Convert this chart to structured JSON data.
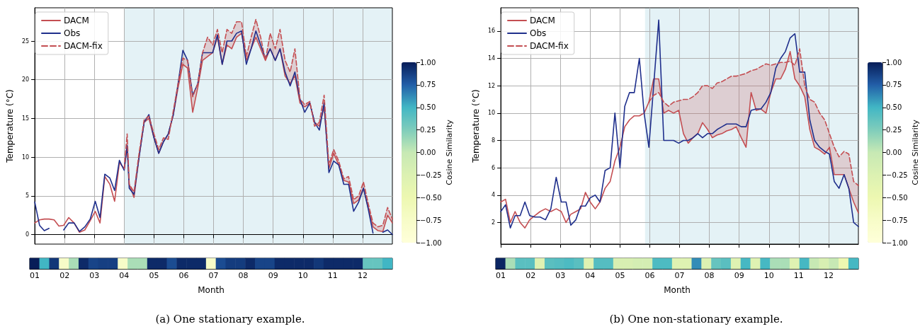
{
  "chart_data": [
    {
      "type": "line",
      "ylabel": "Temperature (°C)",
      "xlim": [
        1,
        13
      ],
      "ylim": [
        -1.23,
        29.3
      ],
      "xticks": [
        {
          "value": 1,
          "label": "01"
        },
        {
          "value": 2,
          "label": "02"
        },
        {
          "value": 3,
          "label": "03"
        },
        {
          "value": 4,
          "label": "04"
        },
        {
          "value": 5,
          "label": "05"
        },
        {
          "value": 6,
          "label": "06"
        },
        {
          "value": 7,
          "label": "07"
        },
        {
          "value": 8,
          "label": "08"
        },
        {
          "value": 9,
          "label": "09"
        },
        {
          "value": 10,
          "label": "10"
        },
        {
          "value": 11,
          "label": "11"
        },
        {
          "value": 12,
          "label": "12"
        }
      ],
      "yticks": [
        0,
        5,
        10,
        15,
        20,
        25
      ],
      "grid": true,
      "legend": "top left",
      "bands": [
        {
          "axis": "x",
          "from": 4,
          "to": 13,
          "color": "#e4f2f6"
        }
      ],
      "x": [
        1.0,
        1.16,
        1.32,
        1.48,
        1.65,
        1.81,
        1.97,
        2.14,
        2.32,
        2.5,
        2.68,
        2.86,
        3.03,
        3.19,
        3.35,
        3.52,
        3.68,
        3.84,
        4.0,
        4.1,
        4.17,
        4.33,
        4.5,
        4.67,
        4.83,
        5.0,
        5.16,
        5.32,
        5.48,
        5.65,
        5.81,
        5.97,
        6.13,
        6.3,
        6.47,
        6.63,
        6.8,
        6.97,
        7.13,
        7.29,
        7.45,
        7.61,
        7.77,
        7.94,
        8.1,
        8.26,
        8.42,
        8.58,
        8.74,
        8.9,
        9.07,
        9.23,
        9.4,
        9.57,
        9.73,
        9.9,
        10.06,
        10.23,
        10.39,
        10.55,
        10.71,
        10.87,
        11.03,
        11.2,
        11.37,
        11.53,
        11.7,
        11.87,
        12.03,
        12.19,
        12.35,
        12.52,
        12.68,
        12.84,
        13.0
      ],
      "series": [
        {
          "name": "DACM",
          "color": "#c44e52",
          "line_style": "solid",
          "values": [
            1.5,
            1.9,
            2.0,
            2.0,
            1.9,
            1.1,
            1.2,
            2.2,
            1.5,
            0.3,
            0.6,
            1.8,
            3.0,
            1.5,
            7.5,
            6.5,
            4.3,
            9.3,
            8.5,
            11.5,
            6.5,
            4.8,
            10.0,
            14.5,
            15.0,
            12.5,
            10.5,
            12.0,
            13.0,
            15.5,
            19.0,
            22.0,
            21.5,
            15.8,
            19.0,
            22.5,
            23.0,
            23.5,
            25.5,
            22.0,
            24.5,
            24.0,
            25.5,
            26.0,
            22.5,
            24.0,
            25.5,
            24.0,
            22.5,
            24.0,
            22.5,
            24.0,
            20.5,
            19.5,
            20.5,
            17.0,
            16.5,
            17.0,
            14.5,
            14.0,
            16.5,
            8.5,
            10.5,
            9.0,
            7.0,
            6.8,
            4.0,
            4.5,
            6.0,
            3.5,
            1.0,
            0.5,
            0.4,
            2.5,
            1.5
          ]
        },
        {
          "name": "Obs",
          "color": "#1f2f8c",
          "line_style": "solid",
          "values": [
            4.2,
            1.2,
            0.5,
            0.8,
            null,
            null,
            0.6,
            1.5,
            1.5,
            0.4,
            1.0,
            2.0,
            4.3,
            2.2,
            7.8,
            7.3,
            5.7,
            9.6,
            8.3,
            11.5,
            6.0,
            5.2,
            10.0,
            14.5,
            15.5,
            12.5,
            10.5,
            12.0,
            13.0,
            15.5,
            19.5,
            23.8,
            22.5,
            18.0,
            19.5,
            23.5,
            23.5,
            23.5,
            25.8,
            22.0,
            25.0,
            25.0,
            26.0,
            26.3,
            22.0,
            24.0,
            26.3,
            24.5,
            22.8,
            24.0,
            22.5,
            24.0,
            21.0,
            19.2,
            21.0,
            17.5,
            15.8,
            17.0,
            14.5,
            13.5,
            17.0,
            8.0,
            9.5,
            9.0,
            6.5,
            6.5,
            3.0,
            4.2,
            6.0,
            3.3,
            0.2,
            null,
            0.3,
            0.6,
            0.0
          ]
        },
        {
          "name": "DACM-fix",
          "color": "#c44e52",
          "line_style": "dashed",
          "values": [
            null,
            null,
            null,
            null,
            null,
            null,
            null,
            null,
            null,
            null,
            null,
            null,
            null,
            null,
            null,
            null,
            null,
            null,
            8.5,
            13.0,
            6.5,
            5.5,
            10.5,
            14.8,
            15.3,
            13.0,
            11.0,
            12.5,
            12.3,
            16.0,
            19.5,
            22.8,
            22.5,
            17.8,
            19.5,
            23.5,
            25.5,
            24.5,
            26.5,
            23.5,
            26.5,
            26.0,
            27.5,
            27.5,
            23.0,
            25.5,
            27.8,
            25.5,
            22.5,
            26.0,
            24.0,
            26.5,
            22.5,
            21.0,
            24.0,
            17.5,
            16.8,
            17.2,
            14.0,
            14.5,
            18.0,
            9.0,
            11.0,
            9.5,
            7.2,
            7.5,
            4.5,
            5.0,
            6.8,
            4.0,
            1.5,
            1.0,
            1.2,
            3.5,
            2.0
          ],
          "upper": [
            null,
            null,
            null,
            null,
            null,
            null,
            null,
            null,
            null,
            null,
            null,
            null,
            null,
            null,
            null,
            null,
            null,
            null,
            8.5,
            13.0,
            6.5,
            5.5,
            10.5,
            14.8,
            15.3,
            13.0,
            11.0,
            12.5,
            12.3,
            16.0,
            19.5,
            22.8,
            22.5,
            17.8,
            19.5,
            23.5,
            25.5,
            24.5,
            26.5,
            23.5,
            26.5,
            26.0,
            27.5,
            27.5,
            23.0,
            25.5,
            27.8,
            25.5,
            22.5,
            26.0,
            24.0,
            26.5,
            22.5,
            21.0,
            24.0,
            17.5,
            16.8,
            17.2,
            14.0,
            14.5,
            18.0,
            9.0,
            11.0,
            9.5,
            7.2,
            7.5,
            4.5,
            5.0,
            6.8,
            4.0,
            1.5,
            1.0,
            1.2,
            3.5,
            2.0
          ],
          "lower": [
            null,
            null,
            null,
            null,
            null,
            null,
            null,
            null,
            null,
            null,
            null,
            null,
            null,
            null,
            null,
            null,
            null,
            null,
            8.5,
            11.5,
            6.5,
            4.8,
            10.0,
            14.5,
            15.0,
            12.5,
            10.5,
            12.0,
            13.0,
            15.5,
            19.0,
            22.0,
            21.5,
            15.8,
            19.0,
            22.5,
            23.0,
            23.5,
            25.5,
            22.0,
            24.5,
            24.0,
            25.5,
            26.0,
            22.5,
            24.0,
            25.5,
            24.0,
            22.5,
            24.0,
            22.5,
            24.0,
            20.5,
            19.5,
            20.5,
            17.0,
            16.5,
            17.0,
            14.5,
            14.0,
            16.5,
            8.5,
            10.5,
            9.0,
            7.0,
            6.8,
            4.0,
            4.5,
            6.0,
            3.5,
            1.0,
            0.5,
            0.4,
            2.5,
            1.5
          ]
        }
      ]
    },
    {
      "type": "heatmap",
      "xlabel": "Month",
      "clabel": "Cosine Similarity",
      "clim": [
        -1,
        1
      ],
      "cticks": [
        {
          "value": 1,
          "label": "1.00"
        },
        {
          "value": 0.75,
          "label": "0.75"
        },
        {
          "value": 0.5,
          "label": "0.50"
        },
        {
          "value": 0.25,
          "label": "0.25"
        },
        {
          "value": 0,
          "label": "0.00"
        },
        {
          "value": -0.25,
          "label": "−0.25"
        },
        {
          "value": -0.5,
          "label": "−0.50"
        },
        {
          "value": -0.75,
          "label": "−0.75"
        },
        {
          "value": -1,
          "label": "−1.00"
        }
      ],
      "categories": [
        null,
        null,
        null,
        null,
        null,
        null,
        null,
        null,
        null,
        null,
        null,
        null,
        null,
        null,
        null,
        null,
        null,
        null,
        null,
        null,
        null,
        null,
        null,
        null,
        null,
        null,
        null,
        null,
        null,
        null,
        null,
        null,
        null,
        null,
        null,
        null,
        null
      ],
      "y_categories": [
        null
      ],
      "cells": [
        [
          1.0,
          0.5,
          0.9,
          -0.75,
          0.1,
          0.95,
          0.85,
          0.87,
          0.87,
          -0.75,
          0.1,
          0.1,
          0.95,
          0.95,
          0.82,
          0.95,
          0.95,
          0.95,
          -0.75,
          0.82,
          0.88,
          0.88,
          0.95,
          0.85,
          0.85,
          0.95,
          0.95,
          0.95,
          0.95,
          0.9,
          0.95,
          0.95,
          0.95,
          0.95,
          0.35,
          0.35,
          0.5
        ]
      ],
      "annotations": [
        "(a) One stationary example."
      ]
    },
    {
      "type": "line",
      "ylabel": "Temperature (°C)",
      "xlim": [
        1,
        13
      ],
      "ylim": [
        0.42,
        17.7
      ],
      "xticks": [
        {
          "value": 1,
          "label": "01"
        },
        {
          "value": 2,
          "label": "02"
        },
        {
          "value": 3,
          "label": "03"
        },
        {
          "value": 4,
          "label": "04"
        },
        {
          "value": 5,
          "label": "05"
        },
        {
          "value": 6,
          "label": "06"
        },
        {
          "value": 7,
          "label": "07"
        },
        {
          "value": 8,
          "label": "08"
        },
        {
          "value": 9,
          "label": "09"
        },
        {
          "value": 10,
          "label": "10"
        },
        {
          "value": 11,
          "label": "11"
        },
        {
          "value": 12,
          "label": "12"
        }
      ],
      "yticks": [
        2,
        4,
        6,
        8,
        10,
        12,
        14,
        16
      ],
      "grid": true,
      "legend": "top left",
      "bands": [
        {
          "axis": "x",
          "from": 5.84,
          "to": 13,
          "color": "#e4f2f6"
        }
      ],
      "x": [
        1.0,
        1.16,
        1.32,
        1.48,
        1.65,
        1.81,
        1.97,
        2.14,
        2.32,
        2.5,
        2.68,
        2.86,
        3.03,
        3.19,
        3.35,
        3.52,
        3.68,
        3.84,
        4.0,
        4.17,
        4.33,
        4.5,
        4.67,
        4.83,
        5.0,
        5.16,
        5.32,
        5.48,
        5.65,
        5.81,
        5.97,
        6.13,
        6.3,
        6.47,
        6.63,
        6.8,
        6.97,
        7.13,
        7.29,
        7.45,
        7.61,
        7.77,
        7.94,
        8.1,
        8.26,
        8.42,
        8.58,
        8.74,
        8.9,
        9.07,
        9.23,
        9.4,
        9.57,
        9.73,
        9.9,
        10.06,
        10.23,
        10.39,
        10.55,
        10.71,
        10.87,
        11.03,
        11.2,
        11.37,
        11.53,
        11.7,
        11.87,
        12.03,
        12.19,
        12.35,
        12.52,
        12.68,
        12.84,
        13.0
      ],
      "series": [
        {
          "name": "DACM",
          "color": "#c44e52",
          "line_style": "solid",
          "values": [
            3.5,
            3.7,
            2.0,
            2.8,
            2.0,
            1.6,
            2.2,
            2.5,
            2.8,
            3.0,
            2.8,
            3.0,
            2.8,
            2.0,
            2.6,
            2.8,
            3.0,
            4.2,
            3.5,
            3.0,
            3.5,
            4.5,
            5.0,
            6.5,
            7.5,
            9.0,
            9.5,
            9.8,
            9.8,
            10.0,
            10.8,
            12.5,
            12.5,
            10.0,
            10.2,
            10.0,
            10.2,
            8.5,
            7.8,
            8.2,
            8.5,
            9.3,
            8.8,
            8.2,
            8.4,
            8.5,
            8.7,
            8.8,
            9.0,
            8.2,
            7.5,
            11.5,
            10.2,
            10.3,
            10.0,
            11.5,
            12.5,
            12.5,
            13.2,
            14.5,
            12.5,
            12.0,
            11.2,
            8.8,
            7.5,
            7.3,
            7.0,
            7.5,
            5.5,
            5.5,
            5.5,
            4.5,
            3.5,
            2.7
          ]
        },
        {
          "name": "Obs",
          "color": "#1f2f8c",
          "line_style": "solid",
          "values": [
            2.8,
            3.3,
            1.6,
            2.5,
            2.5,
            3.5,
            2.5,
            2.4,
            2.4,
            2.2,
            3.0,
            5.3,
            3.5,
            3.5,
            1.8,
            2.2,
            3.2,
            3.2,
            3.8,
            4.0,
            3.5,
            5.8,
            6.0,
            10.0,
            6.0,
            10.5,
            11.5,
            11.5,
            14.0,
            10.0,
            7.5,
            12.0,
            16.8,
            8.0,
            8.0,
            8.0,
            7.8,
            8.0,
            8.0,
            8.2,
            8.5,
            8.2,
            8.5,
            8.5,
            8.8,
            9.0,
            9.2,
            9.2,
            9.2,
            9.0,
            9.0,
            10.2,
            10.3,
            10.3,
            10.8,
            11.5,
            13.3,
            14.0,
            14.5,
            15.5,
            15.8,
            13.0,
            13.0,
            9.5,
            8.0,
            7.5,
            7.2,
            7.0,
            5.0,
            4.5,
            5.5,
            4.5,
            2.0,
            1.7
          ]
        },
        {
          "name": "DACM-fix",
          "color": "#c44e52",
          "line_style": "dashed",
          "values": [
            null,
            null,
            null,
            null,
            null,
            null,
            null,
            null,
            null,
            null,
            null,
            null,
            null,
            null,
            null,
            null,
            null,
            null,
            null,
            null,
            null,
            null,
            null,
            null,
            null,
            null,
            null,
            null,
            null,
            null,
            10.8,
            11.3,
            11.5,
            10.8,
            10.5,
            10.8,
            10.9,
            11.0,
            11.0,
            11.2,
            11.5,
            12.0,
            12.0,
            11.8,
            12.2,
            12.3,
            12.5,
            12.7,
            12.7,
            12.8,
            12.9,
            13.1,
            13.2,
            13.4,
            13.6,
            13.5,
            13.6,
            13.7,
            13.7,
            13.8,
            13.5,
            14.7,
            12.0,
            11.0,
            10.8,
            10.0,
            9.5,
            8.5,
            7.5,
            6.8,
            7.2,
            7.0,
            5.0,
            4.7
          ],
          "upper": [
            null,
            null,
            null,
            null,
            null,
            null,
            null,
            null,
            null,
            null,
            null,
            null,
            null,
            null,
            null,
            null,
            null,
            null,
            null,
            null,
            null,
            null,
            null,
            null,
            null,
            null,
            null,
            null,
            null,
            null,
            10.8,
            11.3,
            11.5,
            10.8,
            10.5,
            10.8,
            10.9,
            11.0,
            11.0,
            11.2,
            11.5,
            12.0,
            12.0,
            11.8,
            12.2,
            12.3,
            12.5,
            12.7,
            12.7,
            12.8,
            12.9,
            13.1,
            13.2,
            13.4,
            13.6,
            13.5,
            13.6,
            13.7,
            13.7,
            13.8,
            13.5,
            14.7,
            12.0,
            11.0,
            10.8,
            10.0,
            9.5,
            8.5,
            7.5,
            6.8,
            7.2,
            7.0,
            5.0,
            4.7
          ],
          "lower": [
            null,
            null,
            null,
            null,
            null,
            null,
            null,
            null,
            null,
            null,
            null,
            null,
            null,
            null,
            null,
            null,
            null,
            null,
            null,
            null,
            null,
            null,
            null,
            null,
            null,
            null,
            null,
            null,
            null,
            null,
            10.8,
            12.5,
            12.5,
            10.0,
            10.2,
            10.0,
            10.2,
            8.5,
            7.8,
            8.2,
            8.5,
            9.3,
            8.8,
            8.2,
            8.4,
            8.5,
            8.7,
            8.8,
            9.0,
            8.2,
            7.5,
            11.5,
            10.2,
            10.3,
            10.0,
            11.5,
            12.5,
            12.5,
            13.2,
            14.5,
            12.5,
            12.0,
            11.2,
            8.8,
            7.5,
            7.3,
            7.0,
            7.5,
            5.5,
            5.5,
            5.5,
            4.5,
            3.5,
            2.7
          ]
        }
      ]
    },
    {
      "type": "heatmap",
      "xlabel": "Month",
      "clabel": "Cosine Similarity",
      "clim": [
        -1,
        1
      ],
      "cticks": [
        {
          "value": 1,
          "label": "1.00"
        },
        {
          "value": 0.75,
          "label": "0.75"
        },
        {
          "value": 0.5,
          "label": "0.50"
        },
        {
          "value": 0.25,
          "label": "0.25"
        },
        {
          "value": 0,
          "label": "0.00"
        },
        {
          "value": -0.25,
          "label": "−0.25"
        },
        {
          "value": -0.5,
          "label": "−0.50"
        },
        {
          "value": -0.75,
          "label": "−0.75"
        },
        {
          "value": -1,
          "label": "−1.00"
        }
      ],
      "categories": [
        null,
        null,
        null,
        null,
        null,
        null,
        null,
        null,
        null,
        null,
        null,
        null,
        null,
        null,
        null,
        null,
        null,
        null,
        null,
        null,
        null,
        null,
        null,
        null,
        null,
        null,
        null,
        null,
        null,
        null,
        null,
        null,
        null,
        null,
        null,
        null,
        null
      ],
      "y_categories": [
        null
      ],
      "cells": [
        [
          0.97,
          0.1,
          0.4,
          0.4,
          -0.3,
          0.4,
          0.42,
          0.45,
          0.4,
          -0.3,
          0.42,
          0.42,
          -0.2,
          -0.2,
          -0.15,
          -0.15,
          0.45,
          0.45,
          -0.3,
          -0.3,
          0.62,
          -0.25,
          0.35,
          0.4,
          -0.3,
          0.48,
          -0.3,
          0.48,
          0.1,
          0.1,
          -0.3,
          0.48,
          0.0,
          -0.2,
          0.0,
          -0.5,
          0.48
        ]
      ],
      "annotations": [
        "(b) One non-stationary example."
      ]
    }
  ]
}
